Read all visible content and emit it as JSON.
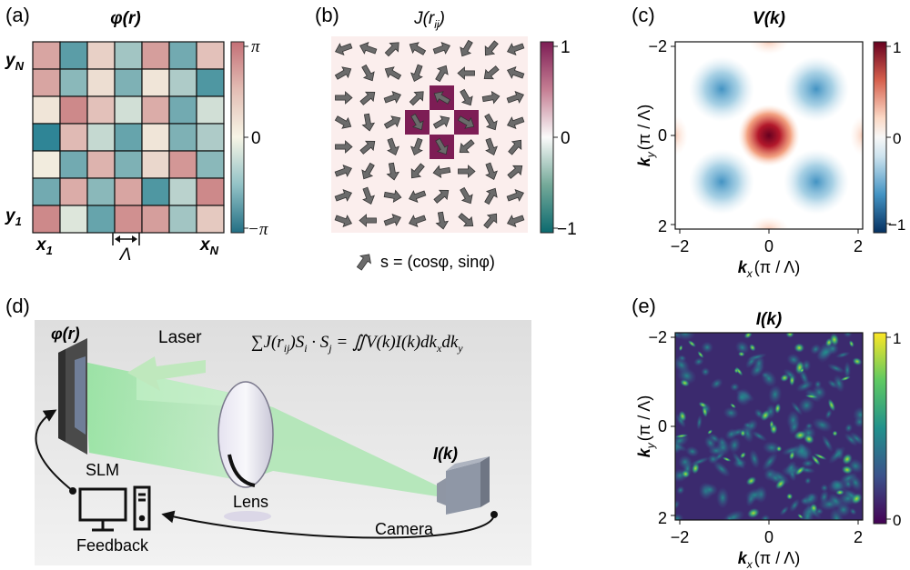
{
  "panels": {
    "a": {
      "label": "(a)",
      "title": "φ(r)",
      "y_top": "y",
      "y_top_sub": "N",
      "y_bottom": "y",
      "y_bottom_sub": "1",
      "x_left": "x",
      "x_left_sub": "1",
      "x_right": "x",
      "x_right_sub": "N",
      "period": "Λ",
      "colorbar_ticks": [
        "π",
        "0",
        "−π"
      ],
      "grid": [
        [
          0.55,
          -0.65,
          0.25,
          -0.35,
          0.6,
          -0.55,
          0.35
        ],
        [
          0.55,
          -0.45,
          0.15,
          -0.5,
          0.1,
          -0.3,
          -0.7
        ],
        [
          0.1,
          0.75,
          0.35,
          -0.15,
          0.5,
          -0.55,
          -0.15
        ],
        [
          -0.85,
          0.4,
          -0.2,
          -0.6,
          0.1,
          -0.5,
          -0.3
        ],
        [
          0.05,
          -0.55,
          0.45,
          -0.5,
          0.2,
          0.65,
          -0.45
        ],
        [
          -0.55,
          0.5,
          -0.45,
          0.55,
          -0.7,
          -0.25,
          0.75
        ],
        [
          0.75,
          -0.1,
          -0.6,
          0.7,
          0.6,
          -0.35,
          0.3
        ]
      ]
    },
    "b": {
      "label": "(b)",
      "title": "J(r",
      "title_sub": "ij",
      "title_end": ")",
      "colorbar_ticks": [
        "1",
        "0",
        "−1"
      ],
      "caption": "s = (cosφ, sinφ)",
      "angles_deg": [
        [
          200,
          160,
          45,
          150,
          20,
          240,
          230,
          200
        ],
        [
          30,
          300,
          150,
          250,
          60,
          180,
          220,
          160
        ],
        [
          0,
          40,
          20,
          45,
          150,
          300,
          10,
          20
        ],
        [
          330,
          280,
          30,
          300,
          30,
          330,
          300,
          200
        ],
        [
          0,
          40,
          290,
          250,
          300,
          220,
          290,
          50
        ],
        [
          20,
          240,
          280,
          230,
          190,
          0,
          290,
          40
        ],
        [
          20,
          290,
          350,
          200,
          40,
          300,
          60,
          20
        ],
        [
          340,
          180,
          20,
          200,
          280,
          320,
          50,
          200
        ]
      ],
      "coupled_cells": [
        [
          2,
          4
        ],
        [
          3,
          3
        ],
        [
          3,
          5
        ],
        [
          4,
          4
        ]
      ]
    },
    "c": {
      "label": "(c)",
      "title": "V(k)",
      "xlabel": "k",
      "xlabel_sub": "x",
      "xlabel_unit": "(π / Λ)",
      "ylabel": "k",
      "ylabel_sub": "y",
      "ylabel_unit": "(π / Λ)",
      "x_ticks": [
        "−2",
        "0",
        "2"
      ],
      "y_ticks": [
        "−2",
        "0",
        "2"
      ],
      "colorbar_ticks": [
        "1",
        "0",
        "−1"
      ]
    },
    "d": {
      "label": "(d)",
      "phase_label": "φ(r)",
      "laser_label": "Laser",
      "equation": "∑J(r",
      "equation_sub": "ij",
      "equation_rest": ")S",
      "equation_sub2": "i",
      "equation_dot": " · S",
      "equation_sub3": "j",
      "equation_rhs": " = ∬V(k)I(k)dk",
      "equation_sub4": "x",
      "equation_dk": "dk",
      "equation_sub5": "y",
      "slm_label": "SLM",
      "lens_label": "Lens",
      "camera_label": "Camera",
      "intensity_label": "I(k)",
      "feedback_label": "Feedback"
    },
    "e": {
      "label": "(e)",
      "title": "I(k)",
      "xlabel": "k",
      "xlabel_sub": "x",
      "xlabel_unit": "(π / Λ)",
      "ylabel": "k",
      "ylabel_sub": "y",
      "ylabel_unit": "(π / Λ)",
      "x_ticks": [
        "−2",
        "0",
        "2"
      ],
      "y_ticks": [
        "−2",
        "0",
        "2"
      ],
      "colorbar_ticks": [
        "1",
        "0"
      ]
    }
  },
  "colors": {
    "phase_pos": "#c97d80",
    "phase_neg": "#2f8596",
    "phase_mid": "#f5f3e4",
    "coupling": "#7d1d55",
    "coupling_bg": "#fbeeed",
    "v_pos": "#8b0a15",
    "v_neg": "#1a4f9a",
    "beam": "#9fe6a6",
    "arrow_green": "#bfe8bd"
  }
}
